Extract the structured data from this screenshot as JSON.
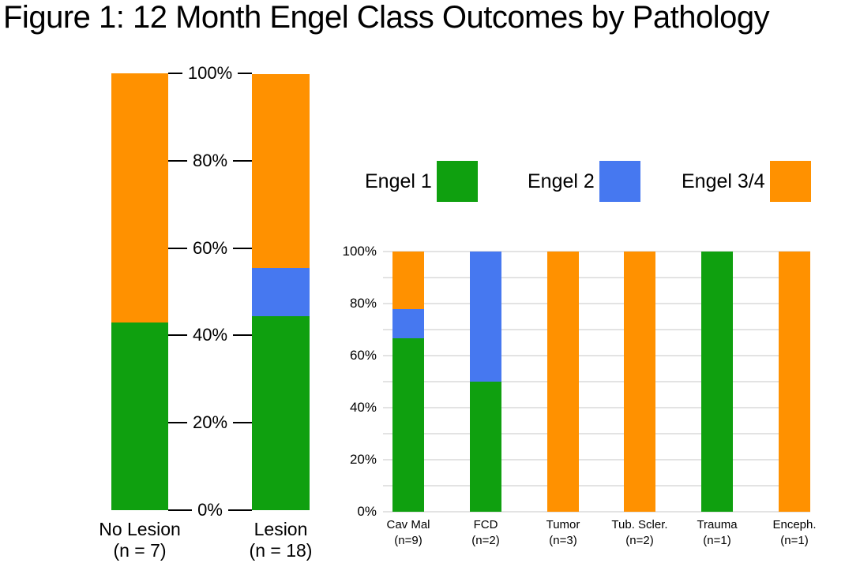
{
  "title": "Figure 1: 12 Month Engel Class Outcomes by Pathology",
  "colors": {
    "engel1": "#0FA00F",
    "engel2": "#4678F0",
    "engel34": "#FF9100",
    "gridline": "#E3E3E3",
    "text": "#000000",
    "background": "#FFFFFF"
  },
  "legend": {
    "position": "above-right-chart",
    "items": [
      {
        "label": "Engel 1",
        "colorKey": "engel1"
      },
      {
        "label": "Engel 2",
        "colorKey": "engel2"
      },
      {
        "label": "Engel 3/4",
        "colorKey": "engel34"
      }
    ]
  },
  "chart_data": [
    {
      "type": "bar",
      "stacked": true,
      "units": "percent",
      "name": "lesion-status",
      "categories": [
        "No Lesion",
        "Lesion"
      ],
      "category_sublabels": [
        "(n = 7)",
        "(n = 18)"
      ],
      "series": [
        {
          "name": "Engel 1",
          "colorKey": "engel1",
          "values": [
            42.9,
            44.4
          ]
        },
        {
          "name": "Engel 2",
          "colorKey": "engel2",
          "values": [
            0,
            11.1
          ]
        },
        {
          "name": "Engel 3/4",
          "colorKey": "engel34",
          "values": [
            57.1,
            44.4
          ]
        }
      ],
      "ylim": [
        0,
        100
      ],
      "ytick_values": [
        0,
        20,
        40,
        60,
        80,
        100
      ],
      "ytick_labels": [
        "0%",
        "20%",
        "40%",
        "60%",
        "80%",
        "100%"
      ],
      "grid": false,
      "tick_style": "dashes-between-bars"
    },
    {
      "type": "bar",
      "stacked": true,
      "units": "percent",
      "name": "pathology",
      "categories": [
        "Cav Mal",
        "FCD",
        "Tumor",
        "Tub. Scler.",
        "Trauma",
        "Enceph."
      ],
      "category_sublabels": [
        "(n=9)",
        "(n=2)",
        "(n=3)",
        "(n=2)",
        "(n=1)",
        "(n=1)"
      ],
      "series": [
        {
          "name": "Engel 1",
          "colorKey": "engel1",
          "values": [
            66.7,
            50,
            0,
            0,
            100,
            0
          ]
        },
        {
          "name": "Engel 2",
          "colorKey": "engel2",
          "values": [
            11.1,
            50,
            0,
            0,
            0,
            0
          ]
        },
        {
          "name": "Engel 3/4",
          "colorKey": "engel34",
          "values": [
            22.2,
            0,
            100,
            100,
            0,
            100
          ]
        }
      ],
      "ylim": [
        0,
        100
      ],
      "ytick_values": [
        0,
        20,
        40,
        60,
        80,
        100
      ],
      "ytick_labels": [
        "0%",
        "20%",
        "40%",
        "60%",
        "80%",
        "100%"
      ],
      "grid": true,
      "grid_step": 10
    }
  ]
}
